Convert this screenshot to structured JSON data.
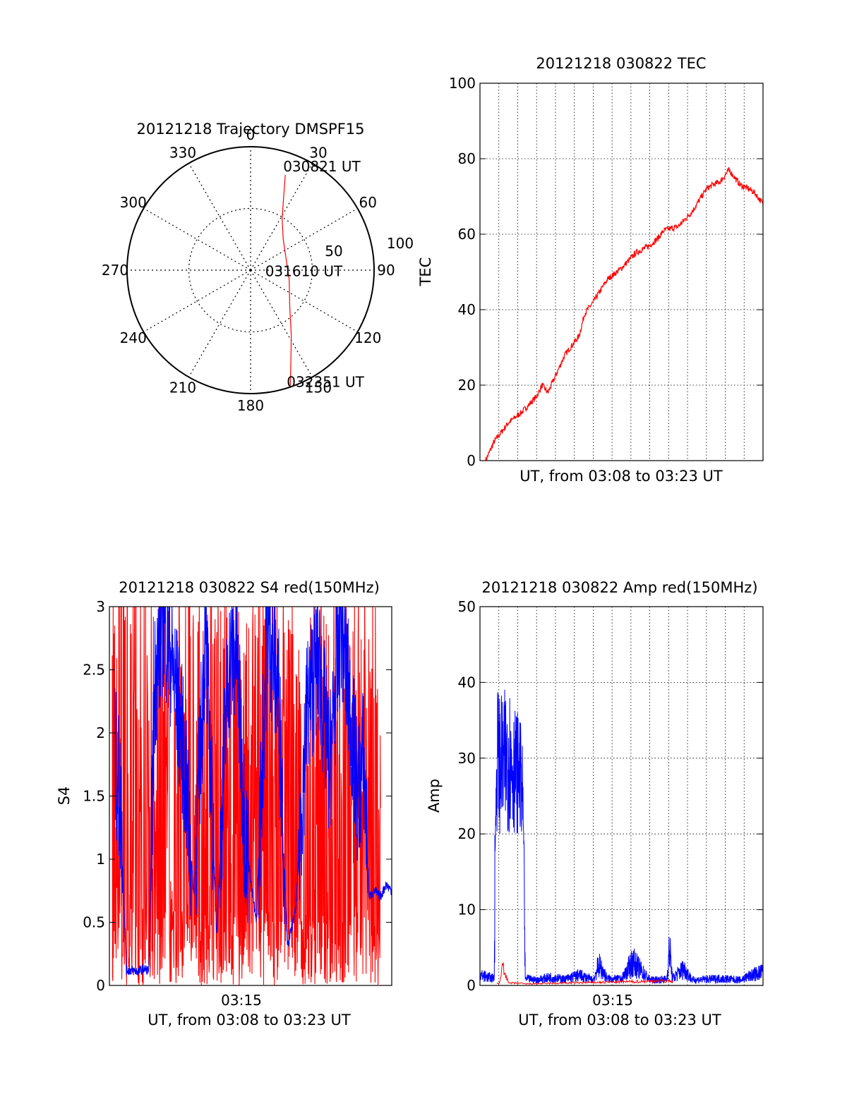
{
  "colors": {
    "red": "#ff0000",
    "blue": "#0000ff",
    "axis": "#000000",
    "grid": "#000000"
  },
  "chart_data": [
    {
      "type": "polar",
      "title": "20121218 Trajectory DMSPF15",
      "angle_labels": [
        "0",
        "30",
        "60",
        "90",
        "120",
        "150",
        "180",
        "210",
        "240",
        "270",
        "300",
        "330"
      ],
      "radius_labels": [
        "50",
        "100"
      ],
      "grid": true,
      "trajectory": {
        "color": "red",
        "points": [
          {
            "az": 20.0,
            "zen": 74
          },
          {
            "az": 24.5,
            "zen": 58
          },
          {
            "az": 31.5,
            "zen": 44
          },
          {
            "az": 46.0,
            "zen": 33
          },
          {
            "az": 75.0,
            "zen": 27
          },
          {
            "az": 104.0,
            "zen": 29
          },
          {
            "az": 133.0,
            "zen": 39
          },
          {
            "az": 148.0,
            "zen": 56
          },
          {
            "az": 157.0,
            "zen": 75
          },
          {
            "az": 161.0,
            "zen": 89
          }
        ]
      },
      "annotations": [
        {
          "text": "030821 UT",
          "az": 20.0,
          "zen": 74
        },
        {
          "text": "031610 UT",
          "az": 75.0,
          "zen": 27
        },
        {
          "text": "032351 UT",
          "az": 161.0,
          "zen": 89
        }
      ]
    },
    {
      "type": "line",
      "title": "20121218 030822 TEC",
      "xlabel": "UT, from 03:08 to 03:23 UT",
      "ylabel": "TEC",
      "ylim": [
        0,
        100
      ],
      "yticks": [
        "0",
        "20",
        "40",
        "60",
        "80",
        "100"
      ],
      "grid": true,
      "series": [
        {
          "color": "red",
          "x": [
            0.02,
            0.05,
            0.1,
            0.15,
            0.2,
            0.22,
            0.24,
            0.3,
            0.35,
            0.37,
            0.4,
            0.45,
            0.5,
            0.55,
            0.6,
            0.63,
            0.65,
            0.7,
            0.75,
            0.8,
            0.82,
            0.85,
            0.88,
            0.9,
            0.92,
            0.95,
            0.97,
            1.0
          ],
          "values": [
            0,
            5,
            10,
            13,
            17,
            20,
            18,
            28,
            33,
            39,
            42,
            48,
            51,
            55,
            57,
            59,
            61,
            62,
            66,
            72,
            73,
            74,
            77,
            75,
            73,
            72,
            71,
            68
          ]
        }
      ]
    },
    {
      "type": "line",
      "title": "20121218 030822 S4 red(150MHz)",
      "xlabel": "UT, from 03:08 to 03:23 UT",
      "ylabel": "S4",
      "ylim": [
        0,
        3
      ],
      "yticks": [
        "0",
        "0.5",
        "1",
        "1.5",
        "2",
        "2.5",
        "3"
      ],
      "xticks": [
        "03:15"
      ],
      "series": [
        {
          "name": "red",
          "color": "red",
          "x": [
            0.01,
            0.03,
            0.05,
            0.08,
            0.1,
            0.12,
            0.14,
            0.17,
            0.19,
            0.22,
            0.25,
            0.27,
            0.3,
            0.32,
            0.35,
            0.37,
            0.4,
            0.42,
            0.45,
            0.48,
            0.5,
            0.53,
            0.55,
            0.58,
            0.6,
            0.62,
            0.65,
            0.68,
            0.7,
            0.72,
            0.75,
            0.78,
            0.8,
            0.82,
            0.85,
            0.87,
            0.9,
            0.92,
            0.94,
            0.96
          ],
          "values": [
            2.9,
            0.2,
            2.6,
            0.1,
            2.8,
            0.3,
            1.6,
            0.2,
            2.4,
            0.0,
            2.9,
            0.1,
            0.6,
            2.5,
            0.2,
            2.9,
            0.3,
            1.8,
            0.2,
            2.7,
            0.1,
            2.9,
            0.6,
            2.0,
            0.3,
            2.8,
            0.1,
            2.6,
            1.5,
            0.2,
            2.9,
            0.1,
            2.3,
            0.4,
            2.8,
            0.2,
            2.0,
            0.1,
            2.5,
            0.3
          ]
        },
        {
          "name": "blue",
          "color": "blue",
          "x": [
            0.02,
            0.04,
            0.06,
            0.08,
            0.1,
            0.12,
            0.14,
            0.16,
            0.19,
            0.22,
            0.26,
            0.3,
            0.34,
            0.38,
            0.42,
            0.45,
            0.48,
            0.52,
            0.56,
            0.6,
            0.63,
            0.66,
            0.7,
            0.74,
            0.78,
            0.82,
            0.86,
            0.88,
            0.9,
            0.92,
            0.94,
            0.96,
            0.98,
            1.0
          ],
          "values": [
            1.8,
            1.4,
            0.12,
            0.12,
            0.11,
            0.13,
            0.12,
            2.4,
            2.9,
            2.6,
            1.9,
            0.7,
            2.8,
            0.4,
            2.5,
            2.7,
            1.2,
            0.5,
            2.9,
            2.3,
            0.3,
            0.6,
            2.2,
            2.6,
            1.7,
            2.9,
            2.0,
            1.5,
            1.8,
            0.7,
            0.75,
            0.7,
            0.8,
            0.75
          ]
        }
      ]
    },
    {
      "type": "line",
      "title": "20121218 030822 Amp red(150MHz)",
      "xlabel": "UT, from 03:08 to 03:23 UT",
      "ylabel": "Amp",
      "ylim": [
        0,
        50
      ],
      "yticks": [
        "0",
        "10",
        "20",
        "30",
        "40",
        "50"
      ],
      "xticks": [
        "03:15"
      ],
      "grid": true,
      "series": [
        {
          "name": "blue",
          "color": "blue",
          "x": [
            0.0,
            0.05,
            0.06,
            0.08,
            0.1,
            0.12,
            0.14,
            0.15,
            0.16,
            0.2,
            0.25,
            0.3,
            0.35,
            0.4,
            0.42,
            0.45,
            0.5,
            0.54,
            0.6,
            0.66,
            0.67,
            0.68,
            0.72,
            0.75,
            0.8,
            0.85,
            0.92,
            0.96,
            1.0
          ],
          "values": [
            1.5,
            1.0,
            38,
            36,
            39,
            35,
            34,
            30,
            1.0,
            0.8,
            1.2,
            0.9,
            1.5,
            0.8,
            3.0,
            1.0,
            0.9,
            3.5,
            0.8,
            0.9,
            5.5,
            1.0,
            2.5,
            0.8,
            0.9,
            1.0,
            0.8,
            1.5,
            2.0
          ]
        },
        {
          "name": "red",
          "color": "red",
          "x": [
            0.06,
            0.07,
            0.08,
            0.1,
            0.12,
            0.14,
            0.16,
            0.66,
            0.67,
            0.68
          ],
          "values": [
            0.3,
            0.3,
            3.0,
            0.3,
            0.3,
            0.3,
            0.2,
            0.6,
            0.6,
            0.5
          ]
        }
      ]
    }
  ]
}
